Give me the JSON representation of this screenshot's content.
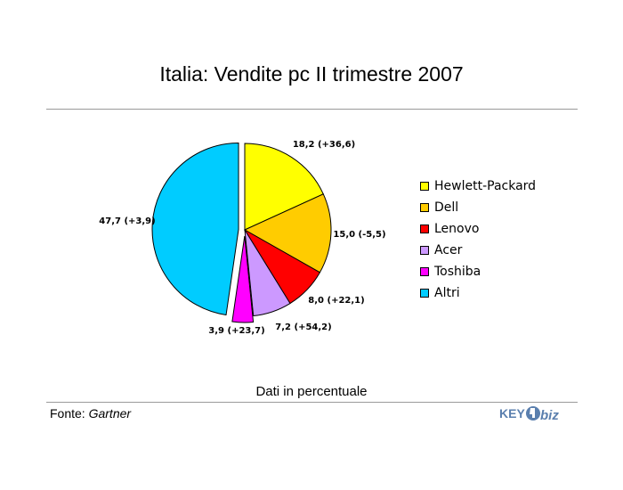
{
  "title": "Italia: Vendite pc II trimestre 2007",
  "note": "Dati in percentuale",
  "source": {
    "label": "Fonte:",
    "name": "Gartner"
  },
  "logo": {
    "text_left": "KEY",
    "text_right": "biz"
  },
  "chart_data": {
    "type": "pie",
    "title": "Italia: Vendite pc II trimestre 2007",
    "legend_position": "right",
    "series": [
      {
        "name": "Hewlett-Packard",
        "value": 18.2,
        "label": "18,2 (+36,6)",
        "color": "#ffff00",
        "exploded": false
      },
      {
        "name": "Dell",
        "value": 15.0,
        "label": "15,0 (-5,5)",
        "color": "#ffcc00",
        "exploded": false
      },
      {
        "name": "Lenovo",
        "value": 8.0,
        "label": "8,0 (+22,1)",
        "color": "#ff0000",
        "exploded": false
      },
      {
        "name": "Acer",
        "value": 7.2,
        "label": "7,2 (+54,2)",
        "color": "#cc99ff",
        "exploded": false
      },
      {
        "name": "Toshiba",
        "value": 3.9,
        "label": "3,9 (+23,7)",
        "color": "#ff00ff",
        "exploded": true
      },
      {
        "name": "Altri",
        "value": 47.7,
        "label": "47,7 (+3,9)",
        "color": "#00ccff",
        "exploded": true
      }
    ]
  }
}
